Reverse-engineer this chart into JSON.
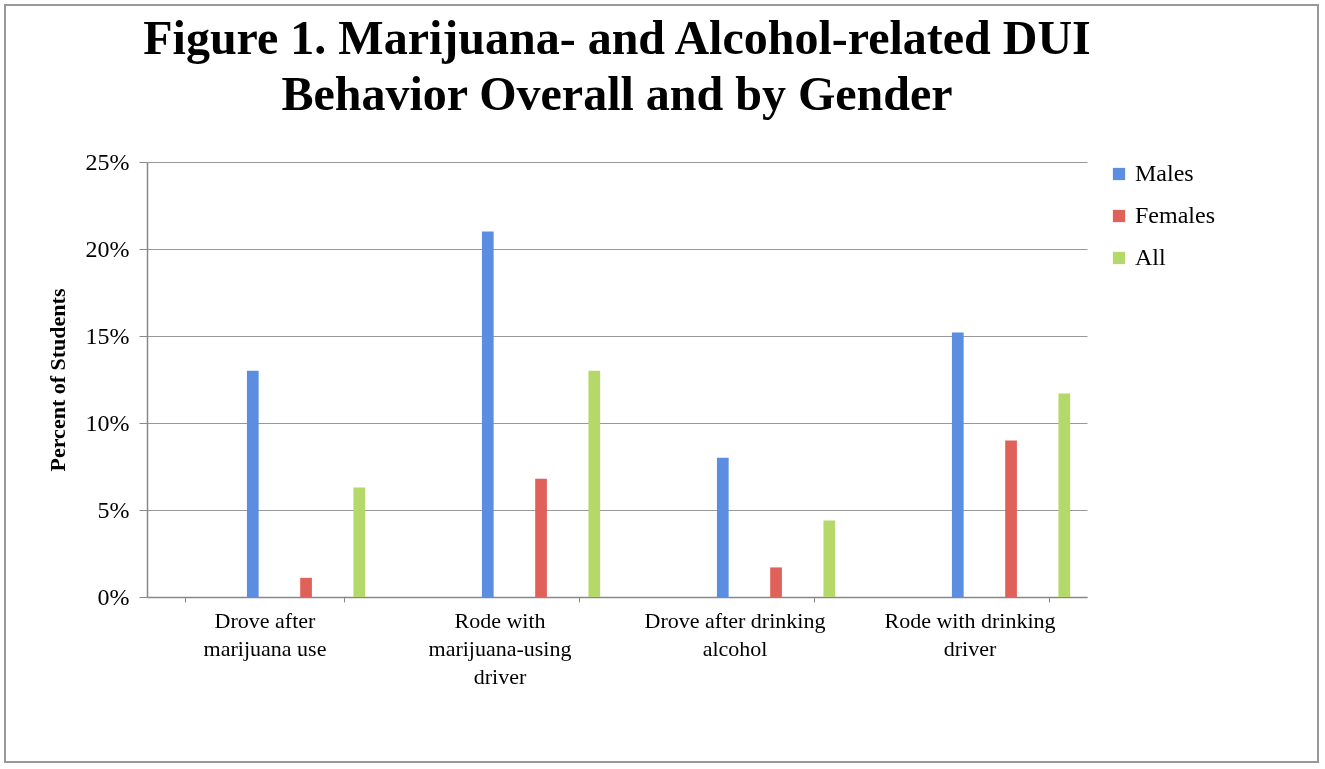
{
  "chart_data": {
    "type": "bar",
    "title": "Figure 1. Marijuana- and Alcohol-related DUI Behavior Overall and by Gender",
    "ylabel": "Percent of Students",
    "categories": [
      "Drove after marijuana use",
      "Rode with marijuana-using driver",
      "Drove after drinking alcohol",
      "Rode with drinking driver"
    ],
    "series": [
      {
        "name": "Males",
        "color": "#5b8ee0",
        "values": [
          13.0,
          21.0,
          8.0,
          15.2
        ]
      },
      {
        "name": "Females",
        "color": "#e0605a",
        "values": [
          1.1,
          6.8,
          1.7,
          9.0
        ]
      },
      {
        "name": "All",
        "color": "#b4d86a",
        "values": [
          6.3,
          13.0,
          4.4,
          11.7
        ]
      }
    ],
    "ylim": [
      0,
      25
    ],
    "yticks": [
      {
        "value": 0,
        "label": "0%"
      },
      {
        "value": 5,
        "label": "5%"
      },
      {
        "value": 10,
        "label": "10%"
      },
      {
        "value": 15,
        "label": "15%"
      },
      {
        "value": 20,
        "label": "20%"
      },
      {
        "value": 25,
        "label": "25%"
      }
    ],
    "grid": "y",
    "legend": "right"
  }
}
